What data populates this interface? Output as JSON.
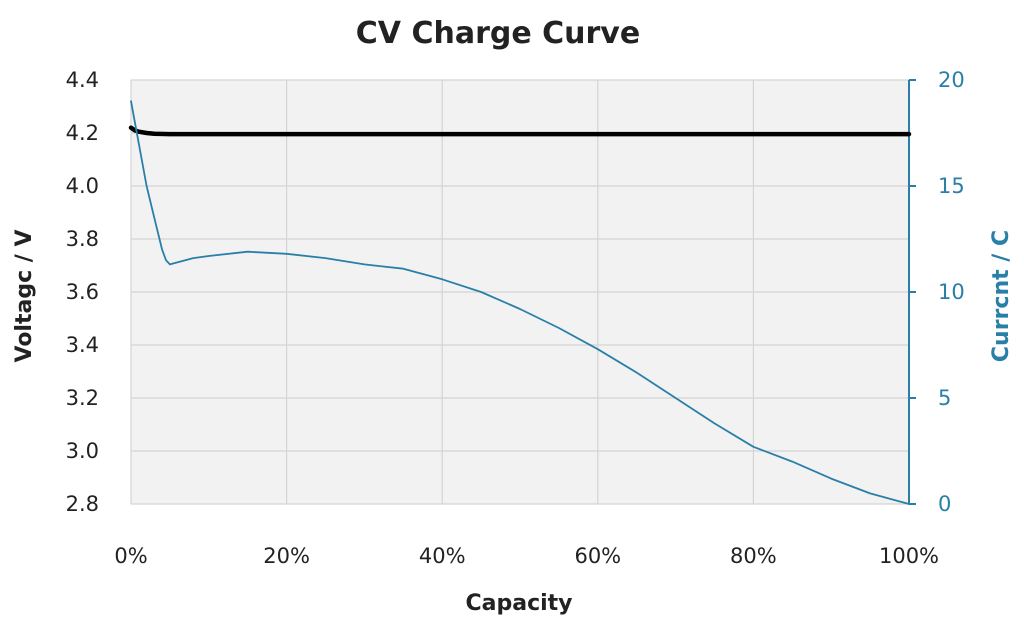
{
  "chart_data": {
    "type": "line",
    "title": "CV Charge Curve",
    "xlabel": "Capacity",
    "ylabel_left": "Voltagc / V",
    "ylabel_right": "Currcnt / C",
    "xlim": [
      0,
      100
    ],
    "ylim_left": [
      2.8,
      4.4
    ],
    "ylim_right": [
      0,
      20
    ],
    "x_ticks": [
      "0%",
      "20%",
      "40%",
      "60%",
      "80%",
      "100%"
    ],
    "y_left_ticks": [
      "4.4",
      "4.2",
      "4.0",
      "3.8",
      "3.6",
      "3.4",
      "3.2",
      "3.0",
      "2.8"
    ],
    "y_right_ticks": [
      "20",
      "15",
      "10",
      "5",
      "0"
    ],
    "grid": true,
    "series": [
      {
        "axis": "left",
        "color": "#000000",
        "x": [
          0,
          0.5,
          1,
          2,
          3,
          5,
          10,
          20,
          40,
          60,
          80,
          100
        ],
        "y": [
          4.22,
          4.21,
          4.205,
          4.2,
          4.197,
          4.196,
          4.196,
          4.196,
          4.196,
          4.196,
          4.196,
          4.196
        ]
      },
      {
        "axis": "right",
        "color": "#2a7fa8",
        "x": [
          0,
          0.5,
          1,
          2,
          3,
          4,
          4.5,
          5,
          6,
          8,
          10,
          15,
          20,
          25,
          30,
          35,
          40,
          45,
          50,
          55,
          60,
          65,
          70,
          75,
          80,
          85,
          90,
          95,
          98,
          100
        ],
        "y": [
          19.0,
          18.0,
          17.0,
          15.0,
          13.5,
          12.0,
          11.5,
          11.3,
          11.4,
          11.6,
          11.7,
          11.9,
          11.8,
          11.6,
          11.3,
          11.1,
          10.6,
          10.0,
          9.2,
          8.3,
          7.3,
          6.2,
          5.0,
          3.8,
          2.7,
          2.0,
          1.2,
          0.5,
          0.2,
          0
        ]
      }
    ]
  },
  "colors": {
    "voltage_line": "#000000",
    "current_line": "#2a7fa8",
    "right_axis": "#2a7fa8",
    "grid": "#d4d4d4",
    "plot_background": "#f2f2f2"
  }
}
